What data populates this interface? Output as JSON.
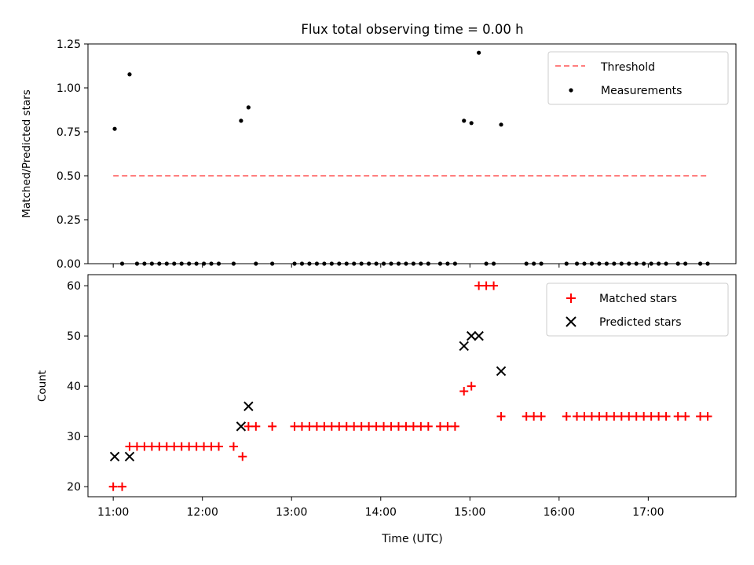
{
  "figure": {
    "title": "Flux total observing time = 0.00 h",
    "xlabel": "Time (UTC)"
  },
  "chart_data": [
    {
      "type": "scatter",
      "ylabel": "Matched/Predicted stars",
      "xlim": [
        "10:43",
        "17:59"
      ],
      "ylim": [
        0,
        1.25
      ],
      "yticks": [
        "0.00",
        "0.25",
        "0.50",
        "0.75",
        "1.00",
        "1.25"
      ],
      "xticks": [
        "11:00",
        "12:00",
        "13:00",
        "14:00",
        "15:00",
        "16:00",
        "17:00"
      ],
      "threshold": {
        "name": "Threshold",
        "value": 0.5,
        "x_start": "11:00",
        "x_end": "17:40",
        "color": "#ff7f7f",
        "style": "dashed"
      },
      "series": [
        {
          "name": "Measurements",
          "color": "#000000",
          "marker": "dot",
          "points": [
            [
              "11:01",
              0.767
            ],
            [
              "11:06",
              0.0
            ],
            [
              "11:11",
              1.077
            ],
            [
              "11:16",
              0.0
            ],
            [
              "11:21",
              0.0
            ],
            [
              "11:26",
              0.0
            ],
            [
              "11:31",
              0.0
            ],
            [
              "11:36",
              0.0
            ],
            [
              "11:41",
              0.0
            ],
            [
              "11:46",
              0.0
            ],
            [
              "11:51",
              0.0
            ],
            [
              "11:56",
              0.0
            ],
            [
              "12:01",
              0.0
            ],
            [
              "12:06",
              0.0
            ],
            [
              "12:11",
              0.0
            ],
            [
              "12:21",
              0.0
            ],
            [
              "12:26",
              0.813
            ],
            [
              "12:31",
              0.889
            ],
            [
              "12:36",
              0.0
            ],
            [
              "12:47",
              0.0
            ],
            [
              "13:02",
              0.0
            ],
            [
              "13:07",
              0.0
            ],
            [
              "13:12",
              0.0
            ],
            [
              "13:17",
              0.0
            ],
            [
              "13:22",
              0.0
            ],
            [
              "13:27",
              0.0
            ],
            [
              "13:32",
              0.0
            ],
            [
              "13:37",
              0.0
            ],
            [
              "13:42",
              0.0
            ],
            [
              "13:47",
              0.0
            ],
            [
              "13:52",
              0.0
            ],
            [
              "13:57",
              0.0
            ],
            [
              "14:02",
              0.0
            ],
            [
              "14:07",
              0.0
            ],
            [
              "14:12",
              0.0
            ],
            [
              "14:17",
              0.0
            ],
            [
              "14:22",
              0.0
            ],
            [
              "14:27",
              0.0
            ],
            [
              "14:32",
              0.0
            ],
            [
              "14:40",
              0.0
            ],
            [
              "14:45",
              0.0
            ],
            [
              "14:50",
              0.0
            ],
            [
              "14:56",
              0.813
            ],
            [
              "15:01",
              0.8
            ],
            [
              "15:06",
              1.2
            ],
            [
              "15:11",
              0.0
            ],
            [
              "15:16",
              0.0
            ],
            [
              "15:21",
              0.791
            ],
            [
              "15:38",
              0.0
            ],
            [
              "15:43",
              0.0
            ],
            [
              "15:48",
              0.0
            ],
            [
              "16:05",
              0.0
            ],
            [
              "16:12",
              0.0
            ],
            [
              "16:17",
              0.0
            ],
            [
              "16:22",
              0.0
            ],
            [
              "16:27",
              0.0
            ],
            [
              "16:32",
              0.0
            ],
            [
              "16:37",
              0.0
            ],
            [
              "16:42",
              0.0
            ],
            [
              "16:47",
              0.0
            ],
            [
              "16:52",
              0.0
            ],
            [
              "16:57",
              0.0
            ],
            [
              "17:02",
              0.0
            ],
            [
              "17:07",
              0.0
            ],
            [
              "17:12",
              0.0
            ],
            [
              "17:20",
              0.0
            ],
            [
              "17:25",
              0.0
            ],
            [
              "17:35",
              0.0
            ],
            [
              "17:40",
              0.0
            ]
          ]
        }
      ],
      "legend": {
        "position": "upper right",
        "entries": [
          "Threshold",
          "Measurements"
        ]
      }
    },
    {
      "type": "scatter",
      "ylabel": "Count",
      "xlim": [
        "10:43",
        "17:59"
      ],
      "ylim": [
        18,
        62.2
      ],
      "yticks": [
        "20",
        "30",
        "40",
        "50",
        "60"
      ],
      "xticks": [
        "11:00",
        "12:00",
        "13:00",
        "14:00",
        "15:00",
        "16:00",
        "17:00"
      ],
      "series": [
        {
          "name": "Matched stars",
          "color": "#ff0000",
          "marker": "plus",
          "points": [
            [
              "11:00",
              20
            ],
            [
              "11:06",
              20
            ],
            [
              "11:11",
              28
            ],
            [
              "11:16",
              28
            ],
            [
              "11:21",
              28
            ],
            [
              "11:26",
              28
            ],
            [
              "11:31",
              28
            ],
            [
              "11:36",
              28
            ],
            [
              "11:41",
              28
            ],
            [
              "11:46",
              28
            ],
            [
              "11:51",
              28
            ],
            [
              "11:56",
              28
            ],
            [
              "12:01",
              28
            ],
            [
              "12:06",
              28
            ],
            [
              "12:11",
              28
            ],
            [
              "12:21",
              28
            ],
            [
              "12:27",
              26
            ],
            [
              "12:31",
              32
            ],
            [
              "12:36",
              32
            ],
            [
              "12:47",
              32
            ],
            [
              "13:02",
              32
            ],
            [
              "13:07",
              32
            ],
            [
              "13:12",
              32
            ],
            [
              "13:17",
              32
            ],
            [
              "13:22",
              32
            ],
            [
              "13:27",
              32
            ],
            [
              "13:32",
              32
            ],
            [
              "13:37",
              32
            ],
            [
              "13:42",
              32
            ],
            [
              "13:47",
              32
            ],
            [
              "13:52",
              32
            ],
            [
              "13:57",
              32
            ],
            [
              "14:02",
              32
            ],
            [
              "14:07",
              32
            ],
            [
              "14:12",
              32
            ],
            [
              "14:17",
              32
            ],
            [
              "14:22",
              32
            ],
            [
              "14:27",
              32
            ],
            [
              "14:32",
              32
            ],
            [
              "14:40",
              32
            ],
            [
              "14:45",
              32
            ],
            [
              "14:50",
              32
            ],
            [
              "14:56",
              39
            ],
            [
              "15:01",
              40
            ],
            [
              "15:06",
              60
            ],
            [
              "15:11",
              60
            ],
            [
              "15:16",
              60
            ],
            [
              "15:21",
              34
            ],
            [
              "15:38",
              34
            ],
            [
              "15:43",
              34
            ],
            [
              "15:48",
              34
            ],
            [
              "16:05",
              34
            ],
            [
              "16:12",
              34
            ],
            [
              "16:17",
              34
            ],
            [
              "16:22",
              34
            ],
            [
              "16:27",
              34
            ],
            [
              "16:32",
              34
            ],
            [
              "16:37",
              34
            ],
            [
              "16:42",
              34
            ],
            [
              "16:47",
              34
            ],
            [
              "16:52",
              34
            ],
            [
              "16:57",
              34
            ],
            [
              "17:02",
              34
            ],
            [
              "17:07",
              34
            ],
            [
              "17:12",
              34
            ],
            [
              "17:20",
              34
            ],
            [
              "17:25",
              34
            ],
            [
              "17:35",
              34
            ],
            [
              "17:40",
              34
            ]
          ]
        },
        {
          "name": "Predicted stars",
          "color": "#000000",
          "marker": "x",
          "points": [
            [
              "11:01",
              26
            ],
            [
              "11:11",
              26
            ],
            [
              "12:26",
              32
            ],
            [
              "12:31",
              36
            ],
            [
              "14:56",
              48
            ],
            [
              "15:01",
              50
            ],
            [
              "15:06",
              50
            ],
            [
              "15:21",
              43
            ]
          ]
        }
      ],
      "legend": {
        "position": "upper right",
        "entries": [
          "Matched stars",
          "Predicted stars"
        ]
      }
    }
  ]
}
